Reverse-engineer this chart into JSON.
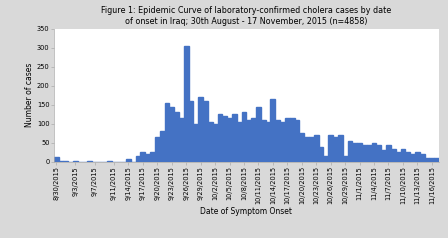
{
  "title": "Figure 1: Epidemic Curve of laboratory-confirmed cholera cases by date\nof onset in Iraq; 30th August - 17 November, 2015 (n=4858)",
  "xlabel": "Date of Symptom Onset",
  "ylabel": "Number of cases",
  "bar_color": "#4472C4",
  "ylim": [
    0,
    350
  ],
  "yticks": [
    0,
    50,
    100,
    150,
    200,
    250,
    300,
    350
  ],
  "dates": [
    "8/30/2015",
    "8/31/2015",
    "9/1/2015",
    "9/2/2015",
    "9/3/2015",
    "9/4/2015",
    "9/5/2015",
    "9/6/2015",
    "9/7/2015",
    "9/8/2015",
    "9/9/2015",
    "9/10/2015",
    "9/11/2015",
    "9/12/2015",
    "9/13/2015",
    "9/14/2015",
    "9/15/2015",
    "9/16/2015",
    "9/17/2015",
    "9/18/2015",
    "9/19/2015",
    "9/20/2015",
    "9/21/2015",
    "9/22/2015",
    "9/23/2015",
    "9/24/2015",
    "9/25/2015",
    "9/26/2015",
    "9/27/2015",
    "9/28/2015",
    "9/29/2015",
    "9/30/2015",
    "10/1/2015",
    "10/2/2015",
    "10/3/2015",
    "10/4/2015",
    "10/5/2015",
    "10/6/2015",
    "10/7/2015",
    "10/8/2015",
    "10/9/2015",
    "10/10/2015",
    "10/11/2015",
    "10/12/2015",
    "10/13/2015",
    "10/14/2015",
    "10/15/2015",
    "10/16/2015",
    "10/17/2015",
    "10/18/2015",
    "10/19/2015",
    "10/20/2015",
    "10/21/2015",
    "10/22/2015",
    "10/23/2015",
    "10/24/2015",
    "10/25/2015",
    "10/26/2015",
    "10/27/2015",
    "10/28/2015",
    "10/29/2015",
    "10/30/2015",
    "10/31/2015",
    "11/1/2015",
    "11/2/2015",
    "11/3/2015",
    "11/4/2015",
    "11/5/2015",
    "11/6/2015",
    "11/7/2015",
    "11/8/2015",
    "11/9/2015",
    "11/10/2015",
    "11/11/2015",
    "11/12/2015",
    "11/13/2015",
    "11/14/2015",
    "11/15/2015",
    "11/16/2015",
    "11/17/2015"
  ],
  "values": [
    12,
    2,
    1,
    0,
    1,
    0,
    0,
    1,
    0,
    0,
    0,
    2,
    0,
    0,
    0,
    8,
    0,
    15,
    25,
    20,
    25,
    65,
    80,
    155,
    145,
    130,
    115,
    305,
    160,
    100,
    170,
    160,
    105,
    100,
    125,
    120,
    115,
    125,
    105,
    130,
    110,
    115,
    145,
    110,
    105,
    165,
    110,
    105,
    115,
    115,
    110,
    75,
    65,
    65,
    70,
    40,
    15,
    70,
    65,
    70,
    15,
    55,
    50,
    50,
    45,
    45,
    50,
    45,
    30,
    45,
    35,
    25,
    35,
    25,
    20,
    25,
    20,
    10,
    10,
    10
  ],
  "xtick_labels": [
    "8/30/2015",
    "9/3/2015",
    "9/7/2015",
    "9/11/2015",
    "9/14/2015",
    "9/17/2015",
    "9/20/2015",
    "9/23/2015",
    "9/26/2015",
    "9/29/2015",
    "10/2/2015",
    "10/5/2015",
    "10/8/2015",
    "10/11/2015",
    "10/14/2015",
    "10/17/2015",
    "10/20/2015",
    "10/23/2015",
    "10/26/2015",
    "10/29/2015",
    "11/1/2015",
    "11/4/2015",
    "11/7/2015",
    "11/10/2015",
    "11/13/2015",
    "11/16/2015"
  ],
  "background_color": "#d9d9d9",
  "plot_bg_color": "#ffffff",
  "title_fontsize": 5.8,
  "axis_label_fontsize": 5.5,
  "tick_fontsize": 4.8
}
